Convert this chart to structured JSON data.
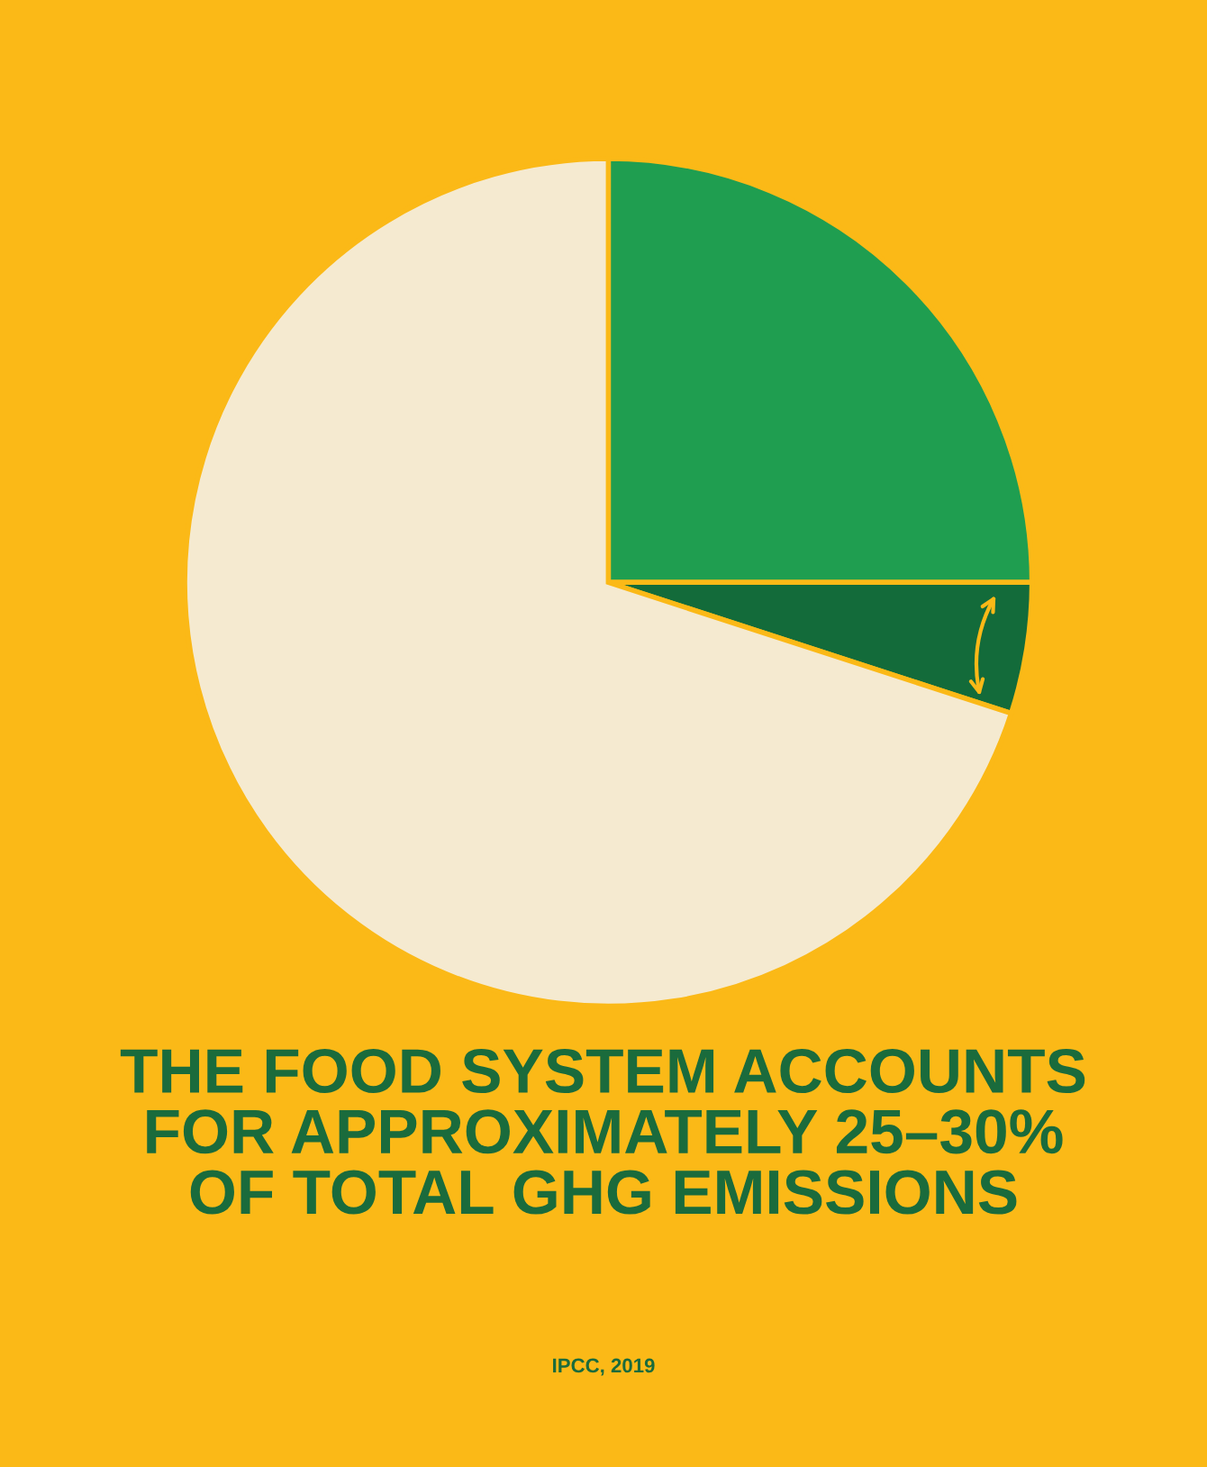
{
  "chart_data": {
    "type": "pie",
    "title": "THE FOOD SYSTEM ACCOUNTS\nFOR APPROXIMATELY 25–30%\nOF TOTAL GHG EMISSIONS",
    "categories": [
      null,
      null,
      null
    ],
    "values": [
      25,
      5,
      70
    ],
    "colors": [
      "#1f9e50",
      "#136b3a",
      "#f5ead0"
    ],
    "annotations": [
      "IPCC, 2019"
    ],
    "legend": false
  }
}
